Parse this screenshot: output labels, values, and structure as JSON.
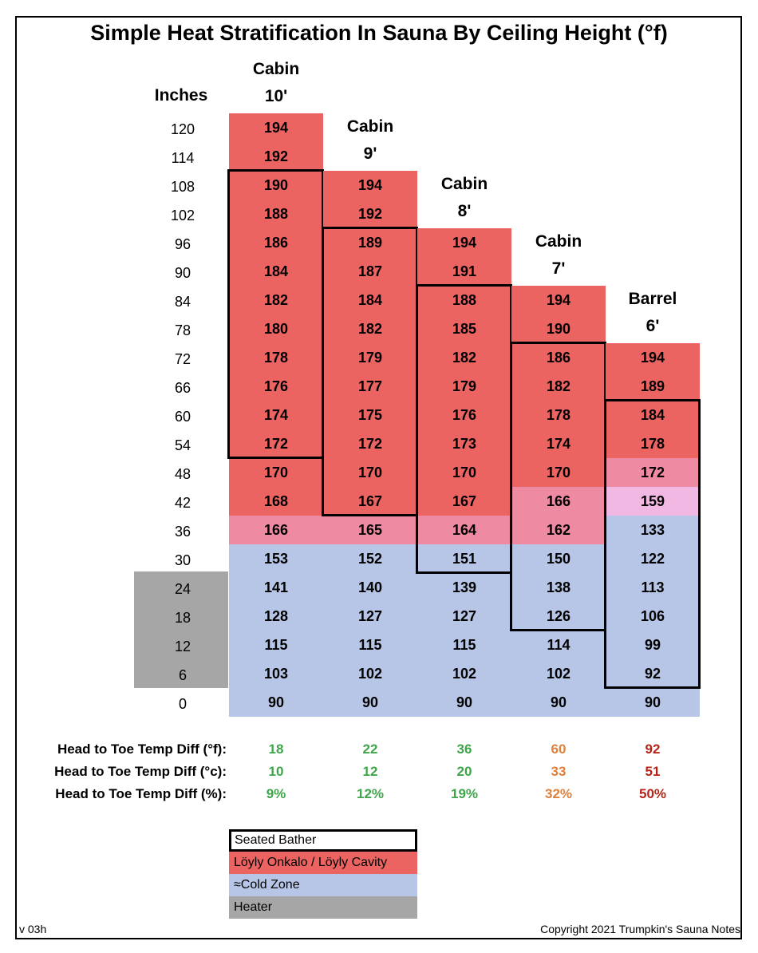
{
  "title": "Simple Heat Stratification In Sauna By Ceiling Height (°f)",
  "version": "v 03h",
  "copyright": "Copyright 2021 Trumpkin's Sauna Notes",
  "inches_header": "Inches",
  "colors": {
    "cavity": "#ec6461",
    "transition_mid": "#ef8aa3",
    "transition_light": "#f1b8e3",
    "cold": "#b7c6e6",
    "heater": "#a6a6a6",
    "diff_green": "#3fa54a",
    "diff_orange": "#e0813b",
    "diff_red": "#b42318"
  },
  "chart_data": {
    "type": "table",
    "title": "Simple Heat Stratification In Sauna By Ceiling Height (°f)",
    "row_label": "Inches",
    "rows": [
      120,
      114,
      108,
      102,
      96,
      90,
      84,
      78,
      72,
      66,
      60,
      54,
      48,
      42,
      36,
      30,
      24,
      18,
      12,
      6,
      0
    ],
    "heater_rows": [
      24,
      18,
      12,
      6
    ],
    "columns": [
      {
        "name_line1": "Cabin",
        "name_line2": "10'",
        "values": [
          194,
          192,
          190,
          188,
          186,
          184,
          182,
          180,
          178,
          176,
          174,
          172,
          170,
          168,
          166,
          153,
          141,
          128,
          115,
          103,
          90
        ],
        "zones": [
          "cavity",
          "cavity",
          "cavity",
          "cavity",
          "cavity",
          "cavity",
          "cavity",
          "cavity",
          "cavity",
          "cavity",
          "cavity",
          "cavity",
          "cavity",
          "cavity",
          "transition_mid",
          "cold",
          "cold",
          "cold",
          "cold",
          "cold",
          "cold"
        ],
        "seated_bather_inches": [
          108,
          54
        ]
      },
      {
        "name_line1": "Cabin",
        "name_line2": "9'",
        "values": [
          194,
          192,
          189,
          187,
          184,
          182,
          179,
          177,
          175,
          172,
          170,
          167,
          165,
          152,
          140,
          127,
          115,
          102,
          90
        ],
        "zones": [
          "cavity",
          "cavity",
          "cavity",
          "cavity",
          "cavity",
          "cavity",
          "cavity",
          "cavity",
          "cavity",
          "cavity",
          "cavity",
          "cavity",
          "transition_mid",
          "cold",
          "cold",
          "cold",
          "cold",
          "cold",
          "cold"
        ],
        "seated_bather_inches": [
          96,
          42
        ]
      },
      {
        "name_line1": "Cabin",
        "name_line2": "8'",
        "values": [
          194,
          191,
          188,
          185,
          182,
          179,
          176,
          173,
          170,
          167,
          164,
          151,
          139,
          127,
          115,
          102,
          90
        ],
        "zones": [
          "cavity",
          "cavity",
          "cavity",
          "cavity",
          "cavity",
          "cavity",
          "cavity",
          "cavity",
          "cavity",
          "cavity",
          "transition_mid",
          "cold",
          "cold",
          "cold",
          "cold",
          "cold",
          "cold"
        ],
        "seated_bather_inches": [
          84,
          30
        ]
      },
      {
        "name_line1": "Cabin",
        "name_line2": "7'",
        "values": [
          194,
          190,
          186,
          182,
          178,
          174,
          170,
          166,
          162,
          150,
          138,
          126,
          114,
          102,
          90
        ],
        "zones": [
          "cavity",
          "cavity",
          "cavity",
          "cavity",
          "cavity",
          "cavity",
          "cavity",
          "transition_mid",
          "transition_mid",
          "cold",
          "cold",
          "cold",
          "cold",
          "cold",
          "cold"
        ],
        "seated_bather_inches": [
          72,
          18
        ]
      },
      {
        "name_line1": "Barrel",
        "name_line2": "6'",
        "values": [
          194,
          189,
          184,
          178,
          172,
          159,
          133,
          122,
          113,
          106,
          99,
          92,
          90
        ],
        "zones": [
          "cavity",
          "cavity",
          "cavity",
          "cavity",
          "transition_mid",
          "transition_light",
          "cold",
          "cold",
          "cold",
          "cold",
          "cold",
          "cold",
          "cold"
        ],
        "seated_bather_inches": [
          60,
          6
        ]
      }
    ],
    "diffs": {
      "labels": [
        "Head to Toe Temp Diff (°f):",
        "Head to Toe Temp Diff (°c):",
        "Head to Toe Temp Diff (%):"
      ],
      "values": [
        [
          "18",
          "22",
          "36",
          "60",
          "92"
        ],
        [
          "10",
          "12",
          "20",
          "33",
          "51"
        ],
        [
          "9%",
          "12%",
          "19%",
          "32%",
          "50%"
        ]
      ],
      "colors": [
        "diff_green",
        "diff_green",
        "diff_green",
        "diff_orange",
        "diff_red"
      ]
    }
  },
  "legend": [
    {
      "label": "Seated Bather",
      "style": "bather"
    },
    {
      "label": "Löyly Onkalo / Löyly Cavity",
      "style": "cavity"
    },
    {
      "label": "≈Cold Zone",
      "style": "cold"
    },
    {
      "label": "Heater",
      "style": "heater"
    }
  ]
}
